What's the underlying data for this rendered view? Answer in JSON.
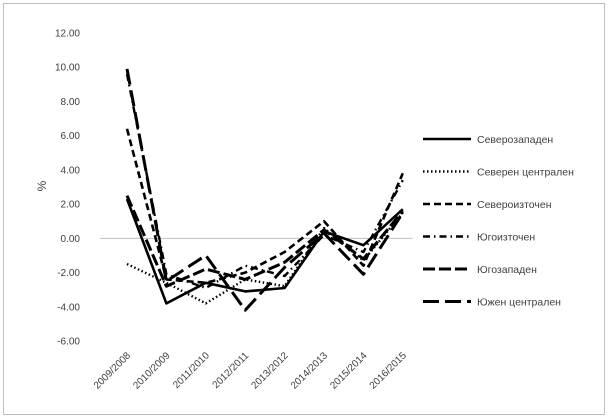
{
  "chart_data": {
    "type": "line",
    "ylabel": "%",
    "ylim": [
      -6,
      12
    ],
    "ytick_step": 2,
    "ytick_labels": [
      "12.00",
      "10.00",
      "8.00",
      "6.00",
      "4.00",
      "2.00",
      "0.00",
      "-2.00",
      "-4.00",
      "-6.00"
    ],
    "categories": [
      "2009/2008",
      "2010/2009",
      "2011/2010",
      "2012/2011",
      "2013/2012",
      "2014/2013",
      "2015/2014",
      "2016/2015"
    ],
    "legend_position": "right",
    "series": [
      {
        "name": "Северозападен",
        "style": "solid",
        "values": [
          2.3,
          -3.8,
          -2.6,
          -3.1,
          -2.9,
          0.4,
          -0.4,
          1.7
        ]
      },
      {
        "name": "Северен централен",
        "style": "dotted",
        "values": [
          -1.5,
          -2.6,
          -3.8,
          -2.4,
          -2.8,
          0.6,
          -1.3,
          1.5
        ]
      },
      {
        "name": "Североизточен",
        "style": "dashed",
        "values": [
          6.4,
          -2.4,
          -2.6,
          -2.0,
          -0.8,
          1.0,
          -1.6,
          3.8
        ]
      },
      {
        "name": "Югоизточен",
        "style": "dashdot",
        "values": [
          9.6,
          -2.1,
          -2.9,
          -1.6,
          -2.2,
          0.2,
          -0.8,
          3.4
        ]
      },
      {
        "name": "Югозападен",
        "style": "longdash",
        "values": [
          2.5,
          -2.8,
          -1.8,
          -2.4,
          -1.4,
          0.5,
          -1.2,
          1.6
        ]
      },
      {
        "name": "Южен централен",
        "style": "longdashgap",
        "values": [
          9.9,
          -2.5,
          -1.0,
          -4.2,
          -1.7,
          0.3,
          -2.1,
          1.5
        ]
      }
    ],
    "zero_line_color": "#bfbfbf",
    "series_color": "#000000"
  }
}
